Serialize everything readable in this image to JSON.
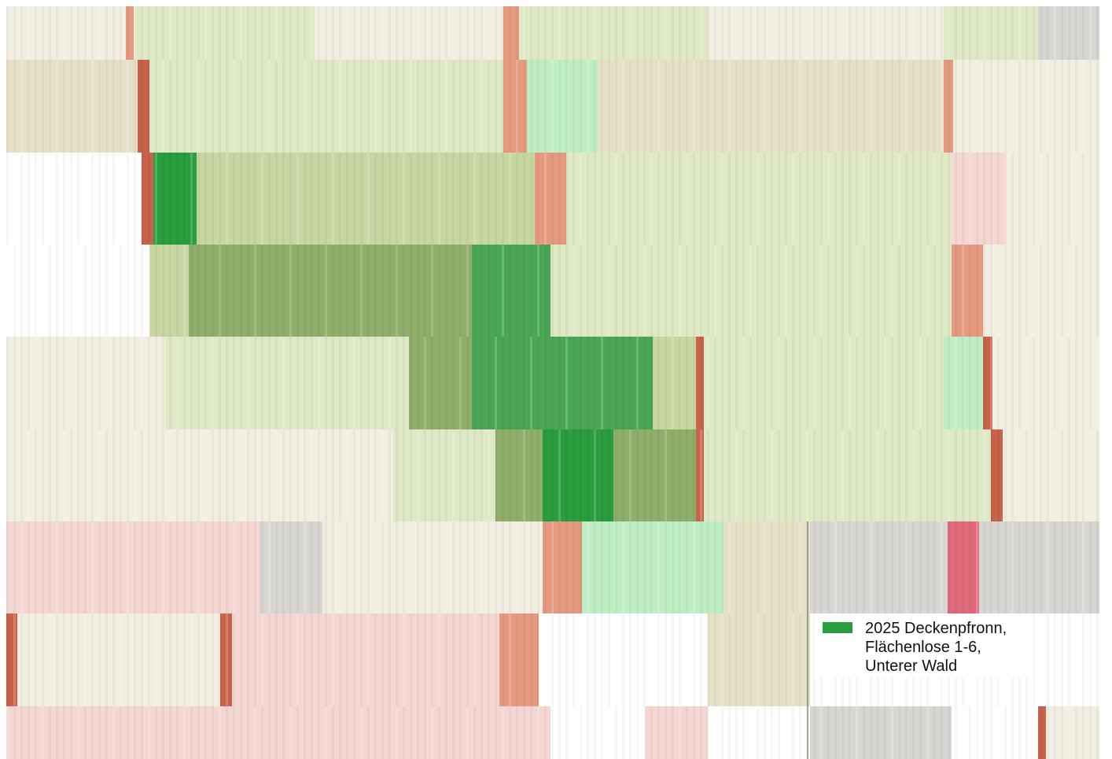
{
  "map": {
    "accent_color": "#2a9d3e",
    "tone_colors": {
      "blank": "#ffffff",
      "cream": "#f3eee2",
      "beige": "#e6e0c8",
      "light_green": "#dfe9c5",
      "sage": "#c8d6a2",
      "olive": "#8fae6a",
      "green": "#4aa656",
      "bright_green": "#2a9d3e",
      "pink": "#f4d6d2",
      "salmon": "#e59a80",
      "brick": "#c8634a",
      "rose": "#e06a7a",
      "gray": "#d8d6d2",
      "mint": "#bfeec4"
    }
  },
  "legend": {
    "items": [
      {
        "label": "2025 Deckenpfronn, Flächenlose 1-6, Unterer Wald",
        "color": "#2a9d3e"
      }
    ]
  }
}
